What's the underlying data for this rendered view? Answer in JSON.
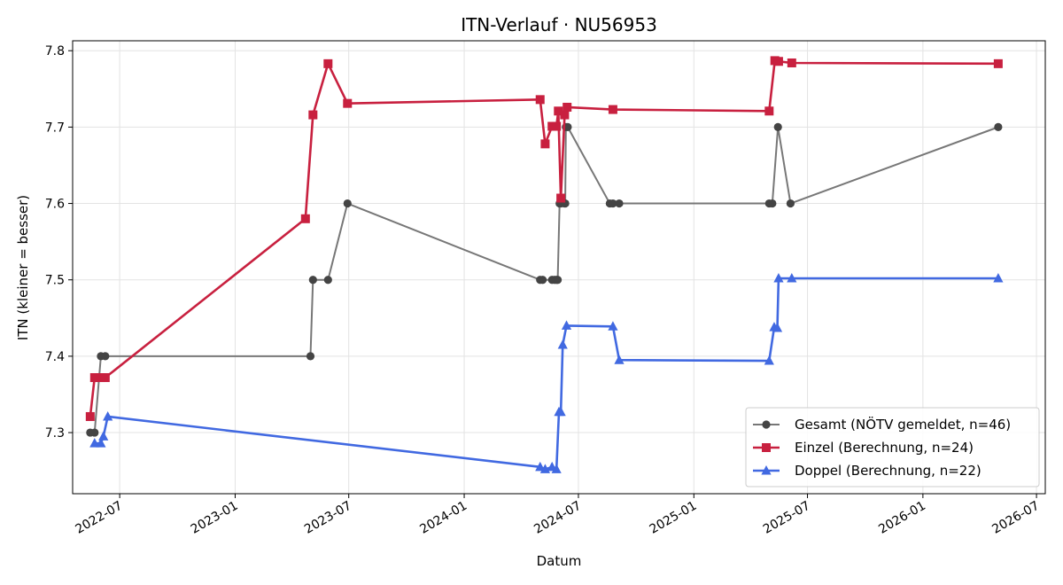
{
  "chart_data": {
    "type": "line",
    "title": "ITN-Verlauf · NU56953",
    "xlabel": "Datum",
    "ylabel": "ITN  (kleiner = besser)",
    "xlim": [
      "2022-04-17",
      "2026-07-15"
    ],
    "ylim": [
      7.22,
      7.813
    ],
    "x_ticks": [
      "2022-07-01",
      "2023-01-01",
      "2023-07-01",
      "2024-01-01",
      "2024-07-01",
      "2025-01-01",
      "2025-07-01",
      "2026-01-01",
      "2026-07-01"
    ],
    "x_tick_labels": [
      "2022-07",
      "2023-01",
      "2023-07",
      "2024-01",
      "2024-07",
      "2025-01",
      "2025-07",
      "2026-01",
      "2026-07"
    ],
    "y_ticks": [
      7.3,
      7.4,
      7.5,
      7.6,
      7.7,
      7.8
    ],
    "y_tick_labels": [
      "7.3",
      "7.4",
      "7.5",
      "7.6",
      "7.7",
      "7.8"
    ],
    "grid": true,
    "legend_position": "bottom-right",
    "series": [
      {
        "name": "Gesamt (NÖTV gemeldet, n=46)",
        "color": "#555555",
        "marker": "circle",
        "points": [
          [
            "2022-05-15",
            7.3
          ],
          [
            "2022-05-22",
            7.3
          ],
          [
            "2022-06-01",
            7.4
          ],
          [
            "2022-06-08",
            7.4
          ],
          [
            "2023-05-01",
            7.4
          ],
          [
            "2023-05-05",
            7.5
          ],
          [
            "2023-05-29",
            7.5
          ],
          [
            "2023-06-29",
            7.6
          ],
          [
            "2024-05-01",
            7.5
          ],
          [
            "2024-05-05",
            7.5
          ],
          [
            "2024-05-20",
            7.5
          ],
          [
            "2024-05-24",
            7.5
          ],
          [
            "2024-05-27",
            7.5
          ],
          [
            "2024-05-29",
            7.5
          ],
          [
            "2024-06-01",
            7.6
          ],
          [
            "2024-06-03",
            7.6
          ],
          [
            "2024-06-09",
            7.6
          ],
          [
            "2024-06-10",
            7.6
          ],
          [
            "2024-06-11",
            7.7
          ],
          [
            "2024-06-14",
            7.7
          ],
          [
            "2024-08-20",
            7.6
          ],
          [
            "2024-08-25",
            7.6
          ],
          [
            "2024-09-04",
            7.6
          ],
          [
            "2025-05-01",
            7.6
          ],
          [
            "2025-05-06",
            7.6
          ],
          [
            "2025-05-15",
            7.7
          ],
          [
            "2025-06-04",
            7.6
          ],
          [
            "2026-05-01",
            7.7
          ]
        ]
      },
      {
        "name": "Einzel (Berechnung, n=24)",
        "color": "#c81e3c",
        "marker": "square",
        "points": [
          [
            "2022-05-15",
            7.321
          ],
          [
            "2022-05-22",
            7.372
          ],
          [
            "2022-06-01",
            7.372
          ],
          [
            "2022-06-08",
            7.372
          ],
          [
            "2023-04-23",
            7.58
          ],
          [
            "2023-05-05",
            7.716
          ],
          [
            "2023-05-29",
            7.783
          ],
          [
            "2023-06-29",
            7.731
          ],
          [
            "2024-05-01",
            7.736
          ],
          [
            "2024-05-09",
            7.678
          ],
          [
            "2024-05-20",
            7.701
          ],
          [
            "2024-05-27",
            7.701
          ],
          [
            "2024-05-30",
            7.721
          ],
          [
            "2024-06-03",
            7.607
          ],
          [
            "2024-06-09",
            7.716
          ],
          [
            "2024-06-13",
            7.726
          ],
          [
            "2024-08-25",
            7.723
          ],
          [
            "2025-05-01",
            7.721
          ],
          [
            "2025-05-10",
            7.787
          ],
          [
            "2025-05-16",
            7.786
          ],
          [
            "2025-06-06",
            7.784
          ],
          [
            "2026-05-01",
            7.783
          ]
        ]
      },
      {
        "name": "Doppel (Berechnung, n=22)",
        "color": "#4169e1",
        "marker": "triangle",
        "points": [
          [
            "2022-05-22",
            7.286
          ],
          [
            "2022-06-01",
            7.286
          ],
          [
            "2022-06-05",
            7.295
          ],
          [
            "2022-06-12",
            7.321
          ],
          [
            "2024-05-01",
            7.255
          ],
          [
            "2024-05-09",
            7.252
          ],
          [
            "2024-05-20",
            7.255
          ],
          [
            "2024-05-27",
            7.252
          ],
          [
            "2024-05-31",
            7.327
          ],
          [
            "2024-06-03",
            7.327
          ],
          [
            "2024-06-06",
            7.415
          ],
          [
            "2024-06-12",
            7.44
          ],
          [
            "2024-08-25",
            7.439
          ],
          [
            "2024-09-04",
            7.395
          ],
          [
            "2025-05-01",
            7.394
          ],
          [
            "2025-05-09",
            7.438
          ],
          [
            "2025-05-14",
            7.437
          ],
          [
            "2025-05-16",
            7.502
          ],
          [
            "2025-06-06",
            7.502
          ],
          [
            "2026-05-01",
            7.502
          ]
        ]
      }
    ]
  }
}
